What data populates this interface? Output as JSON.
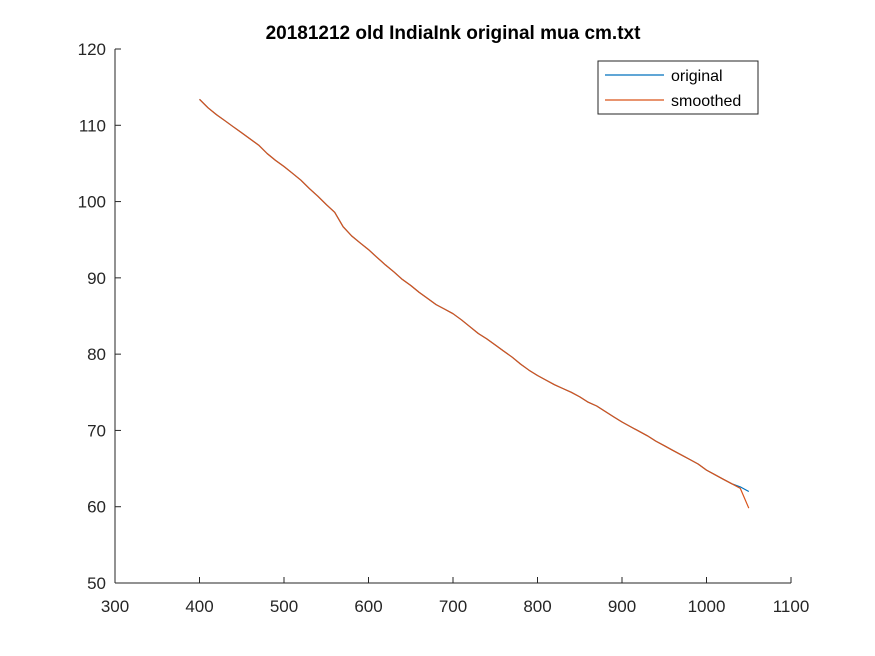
{
  "chart_data": {
    "type": "line",
    "title": "20181212 old IndiaInk original mua cm.txt",
    "xlabel": "",
    "ylabel": "",
    "xlim": [
      300,
      1100
    ],
    "ylim": [
      50,
      120
    ],
    "xticks": [
      300,
      400,
      500,
      600,
      700,
      800,
      900,
      1000,
      1100
    ],
    "yticks": [
      50,
      60,
      70,
      80,
      90,
      100,
      110,
      120
    ],
    "grid": false,
    "legend_position": "top-right",
    "series": [
      {
        "name": "original",
        "color": "#0072BD",
        "x": [
          400,
          410,
          420,
          430,
          440,
          450,
          460,
          470,
          480,
          490,
          500,
          510,
          520,
          530,
          540,
          550,
          560,
          570,
          580,
          590,
          600,
          610,
          620,
          630,
          640,
          650,
          660,
          670,
          680,
          690,
          700,
          710,
          720,
          730,
          740,
          750,
          760,
          770,
          780,
          790,
          800,
          810,
          820,
          830,
          840,
          850,
          860,
          870,
          880,
          890,
          900,
          910,
          920,
          930,
          940,
          950,
          960,
          970,
          980,
          990,
          1000,
          1010,
          1020,
          1030,
          1040,
          1050
        ],
        "y": [
          113.4,
          112.3,
          111.4,
          110.6,
          109.8,
          109.0,
          108.2,
          107.4,
          106.3,
          105.4,
          104.6,
          103.7,
          102.8,
          101.7,
          100.7,
          99.6,
          98.6,
          96.7,
          95.5,
          94.6,
          93.7,
          92.7,
          91.7,
          90.8,
          89.8,
          89.0,
          88.1,
          87.3,
          86.5,
          85.9,
          85.3,
          84.5,
          83.6,
          82.7,
          82.0,
          81.2,
          80.4,
          79.6,
          78.7,
          77.9,
          77.2,
          76.6,
          76.0,
          75.5,
          75.0,
          74.4,
          73.7,
          73.2,
          72.5,
          71.8,
          71.1,
          70.5,
          69.9,
          69.3,
          68.6,
          68.0,
          67.4,
          66.8,
          66.2,
          65.6,
          64.8,
          64.2,
          63.6,
          63.0,
          62.6,
          62.0
        ]
      },
      {
        "name": "smoothed",
        "color": "#D95319",
        "x": [
          400,
          410,
          420,
          430,
          440,
          450,
          460,
          470,
          480,
          490,
          500,
          510,
          520,
          530,
          540,
          550,
          560,
          570,
          580,
          590,
          600,
          610,
          620,
          630,
          640,
          650,
          660,
          670,
          680,
          690,
          700,
          710,
          720,
          730,
          740,
          750,
          760,
          770,
          780,
          790,
          800,
          810,
          820,
          830,
          840,
          850,
          860,
          870,
          880,
          890,
          900,
          910,
          920,
          930,
          940,
          950,
          960,
          970,
          980,
          990,
          1000,
          1010,
          1020,
          1030,
          1040,
          1050
        ],
        "y": [
          113.4,
          112.3,
          111.4,
          110.6,
          109.8,
          109.0,
          108.2,
          107.4,
          106.3,
          105.4,
          104.6,
          103.7,
          102.8,
          101.7,
          100.7,
          99.6,
          98.6,
          96.7,
          95.5,
          94.6,
          93.7,
          92.7,
          91.7,
          90.8,
          89.8,
          89.0,
          88.1,
          87.3,
          86.5,
          85.9,
          85.3,
          84.5,
          83.6,
          82.7,
          82.0,
          81.2,
          80.4,
          79.6,
          78.7,
          77.9,
          77.2,
          76.6,
          76.0,
          75.5,
          75.0,
          74.4,
          73.7,
          73.2,
          72.5,
          71.8,
          71.1,
          70.5,
          69.9,
          69.3,
          68.6,
          68.0,
          67.4,
          66.8,
          66.2,
          65.6,
          64.8,
          64.2,
          63.6,
          63.0,
          62.4,
          59.8
        ]
      }
    ]
  }
}
